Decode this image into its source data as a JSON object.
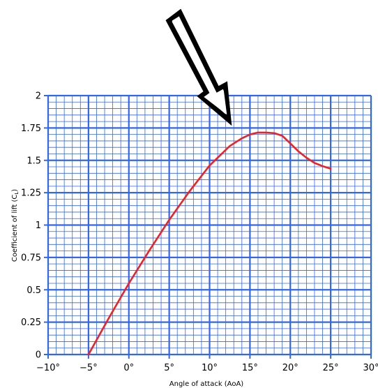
{
  "chart_data": {
    "type": "line",
    "title": "",
    "xlabel": "Angle of attack (AoA)",
    "ylabel_text": "Coefficient of lift (C",
    "ylabel_sub": "L",
    "ylabel_close": ")",
    "xlim": [
      -10,
      30
    ],
    "ylim": [
      0,
      2
    ],
    "x_ticks": [
      -10,
      -5,
      0,
      5,
      10,
      15,
      20,
      25,
      30
    ],
    "x_tick_labels": [
      "−10°",
      "−5°",
      "0°",
      "5°",
      "10°",
      "15°",
      "20°",
      "25°",
      "30°"
    ],
    "y_ticks": [
      0,
      0.25,
      0.5,
      0.75,
      1,
      1.25,
      1.5,
      1.75,
      2
    ],
    "y_tick_labels": [
      "0",
      "0.25",
      "0.5",
      "0.75",
      "1",
      "1.25",
      "1.5",
      "1.75",
      "2"
    ],
    "grid": true,
    "grid_color": "#3366ee",
    "series": [
      {
        "color": "#ee2222",
        "x": [
          -5,
          -2.5,
          0,
          2.5,
          5,
          7.5,
          10,
          12.5,
          14,
          15,
          16,
          17,
          18,
          19,
          20,
          21,
          22,
          23,
          24,
          25
        ],
        "y": [
          0,
          0.28,
          0.55,
          0.8,
          1.04,
          1.26,
          1.46,
          1.61,
          1.67,
          1.7,
          1.715,
          1.715,
          1.71,
          1.69,
          1.63,
          1.57,
          1.52,
          1.48,
          1.455,
          1.435
        ]
      }
    ],
    "annotation": {
      "type": "arrow",
      "points_to": "maximum lift"
    }
  }
}
